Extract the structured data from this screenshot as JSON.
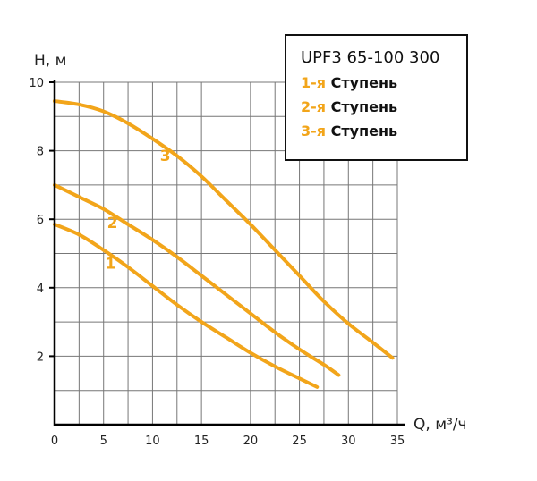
{
  "legend": {
    "title": "UPF3 65-100 300",
    "entries": [
      {
        "prefix": "1-я",
        "word": "Ступень"
      },
      {
        "prefix": "2-я",
        "word": "Ступень"
      },
      {
        "prefix": "3-я",
        "word": "Ступень"
      }
    ]
  },
  "chart_data": {
    "type": "line",
    "ylabel": "H, м",
    "xlabel": "Q, м³/ч",
    "xlim": [
      0,
      35
    ],
    "ylim": [
      0,
      10
    ],
    "x_ticks": [
      0,
      5,
      10,
      15,
      20,
      25,
      30,
      35
    ],
    "y_ticks": [
      2,
      4,
      6,
      8,
      10
    ],
    "grid": true,
    "legend_position": "top-right",
    "colors": {
      "curve": "#f2a51a",
      "grid": "#777777",
      "axis": "#000000"
    },
    "series": [
      {
        "name": "1",
        "x": [
          0,
          2.5,
          5,
          7.5,
          10,
          12.5,
          15,
          17.5,
          20,
          22.5,
          25,
          26.8
        ],
        "y": [
          5.85,
          5.55,
          5.1,
          4.6,
          4.05,
          3.5,
          3.0,
          2.55,
          2.1,
          1.7,
          1.35,
          1.1
        ]
      },
      {
        "name": "2",
        "x": [
          0,
          2.5,
          5,
          7.5,
          10,
          12.5,
          15,
          17.5,
          20,
          22.5,
          25,
          27.5,
          29
        ],
        "y": [
          7.0,
          6.65,
          6.3,
          5.85,
          5.4,
          4.9,
          4.35,
          3.8,
          3.25,
          2.7,
          2.2,
          1.75,
          1.45
        ]
      },
      {
        "name": "3",
        "x": [
          0,
          2.5,
          5,
          7.5,
          10,
          12.5,
          15,
          17.5,
          20,
          22.5,
          25,
          27.5,
          30,
          32.5,
          34.5
        ],
        "y": [
          9.45,
          9.35,
          9.15,
          8.8,
          8.35,
          7.85,
          7.25,
          6.55,
          5.85,
          5.1,
          4.35,
          3.6,
          2.95,
          2.4,
          1.95
        ]
      }
    ],
    "curve_labels": [
      {
        "text": "1",
        "x": 5.7,
        "y": 4.55
      },
      {
        "text": "2",
        "x": 5.9,
        "y": 5.75
      },
      {
        "text": "3",
        "x": 11.3,
        "y": 7.7
      }
    ]
  }
}
